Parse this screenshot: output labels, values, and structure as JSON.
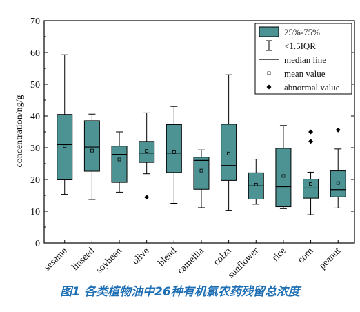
{
  "figure": {
    "caption": "图1 各类植物油中26种有机氯农药残留总浓度"
  },
  "chart_data": {
    "type": "box",
    "ylabel": "concentration/ng/g",
    "xlabel": "",
    "ylim": [
      0,
      70
    ],
    "yticks": [
      0,
      10,
      20,
      30,
      40,
      50,
      60,
      70
    ],
    "box_color": "#4e9393",
    "categories": [
      "sesame",
      "linseed",
      "soybean",
      "olive",
      "blend",
      "camellia",
      "colza",
      "sunflower",
      "rice",
      "corn",
      "peanut"
    ],
    "boxes": [
      {
        "name": "sesame",
        "whisker_low": 15.3,
        "q1": 19.9,
        "median": 31.0,
        "q3": 40.5,
        "whisker_high": 59.3,
        "mean": 30.5,
        "outliers": []
      },
      {
        "name": "linseed",
        "whisker_low": 13.7,
        "q1": 22.6,
        "median": 30.2,
        "q3": 38.5,
        "whisker_high": 40.6,
        "mean": 29.1,
        "outliers": []
      },
      {
        "name": "soybean",
        "whisker_low": 16.0,
        "q1": 19.1,
        "median": 27.9,
        "q3": 30.5,
        "whisker_high": 35.0,
        "mean": 26.3,
        "outliers": []
      },
      {
        "name": "olive",
        "whisker_low": 21.8,
        "q1": 25.4,
        "median": 28.3,
        "q3": 32.0,
        "whisker_high": 41.0,
        "mean": 29.0,
        "outliers": [
          14.4
        ]
      },
      {
        "name": "blend",
        "whisker_low": 12.5,
        "q1": 22.2,
        "median": 28.3,
        "q3": 37.3,
        "whisker_high": 43.0,
        "mean": 28.6,
        "outliers": []
      },
      {
        "name": "camellia",
        "whisker_low": 11.1,
        "q1": 16.9,
        "median": 26.0,
        "q3": 27.0,
        "whisker_high": 29.3,
        "mean": 22.8,
        "outliers": []
      },
      {
        "name": "colza",
        "whisker_low": 10.3,
        "q1": 19.7,
        "median": 24.4,
        "q3": 37.4,
        "whisker_high": 53.0,
        "mean": 28.2,
        "outliers": []
      },
      {
        "name": "sunflower",
        "whisker_low": 12.2,
        "q1": 13.8,
        "median": 18.0,
        "q3": 22.1,
        "whisker_high": 26.4,
        "mean": 18.4,
        "outliers": []
      },
      {
        "name": "rice",
        "whisker_low": 10.8,
        "q1": 11.4,
        "median": 17.7,
        "q3": 29.8,
        "whisker_high": 37.0,
        "mean": 21.1,
        "outliers": []
      },
      {
        "name": "corn",
        "whisker_low": 8.9,
        "q1": 14.1,
        "median": 17.3,
        "q3": 20.1,
        "whisker_high": 22.3,
        "mean": 18.6,
        "outliers": [
          32.0,
          35.0
        ]
      },
      {
        "name": "peanut",
        "whisker_low": 11.0,
        "q1": 14.5,
        "median": 16.8,
        "q3": 22.7,
        "whisker_high": 29.6,
        "mean": 18.9,
        "outliers": [
          35.6
        ]
      }
    ],
    "legend": {
      "position": "top-right",
      "items": [
        {
          "symbol": "box",
          "label": "25%-75%"
        },
        {
          "symbol": "whisker",
          "label": "<1.5IQR"
        },
        {
          "symbol": "median",
          "label": "median line"
        },
        {
          "symbol": "mean",
          "label": "mean value"
        },
        {
          "symbol": "outlier",
          "label": "abnormal value"
        }
      ]
    }
  }
}
